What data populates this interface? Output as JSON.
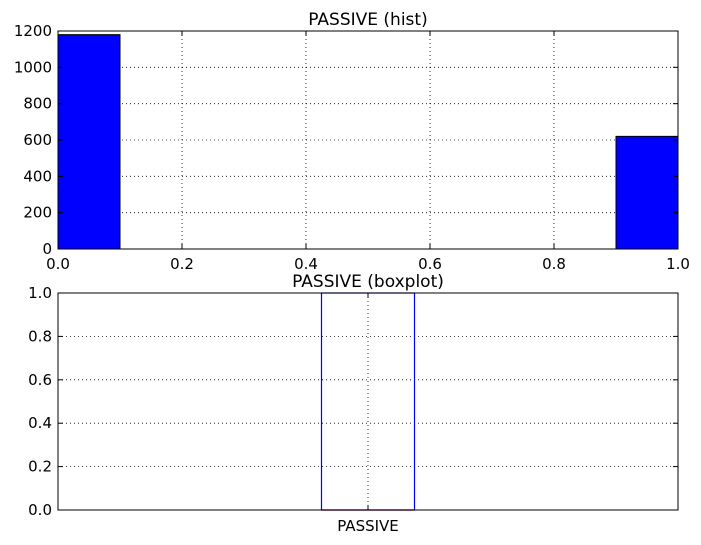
{
  "chart_data": [
    {
      "type": "bar",
      "title": "PASSIVE (hist)",
      "xlabel": "",
      "ylabel": "",
      "xlim": [
        0.0,
        1.0
      ],
      "ylim": [
        0,
        1200
      ],
      "xticks": [
        "0.0",
        "0.2",
        "0.4",
        "0.6",
        "0.8",
        "1.0"
      ],
      "yticks": [
        "0",
        "200",
        "400",
        "600",
        "800",
        "1000",
        "1200"
      ],
      "bins": [
        {
          "x0": 0.0,
          "x1": 0.1,
          "value": 1180
        },
        {
          "x0": 0.9,
          "x1": 1.0,
          "value": 620
        }
      ],
      "grid": true,
      "bar_color": "#0000ff"
    },
    {
      "type": "box",
      "title": "PASSIVE (boxplot)",
      "xlabel": "",
      "ylabel": "",
      "ylim": [
        0.0,
        1.0
      ],
      "yticks": [
        "0.0",
        "0.2",
        "0.4",
        "0.6",
        "0.8",
        "1.0"
      ],
      "categories": [
        "PASSIVE"
      ],
      "box": {
        "min": 0.0,
        "q1": 0.0,
        "median": 0.0,
        "q3": 1.0,
        "max": 1.0
      },
      "grid": true,
      "box_color": "#0000ff",
      "median_color": "#ff0000"
    }
  ]
}
